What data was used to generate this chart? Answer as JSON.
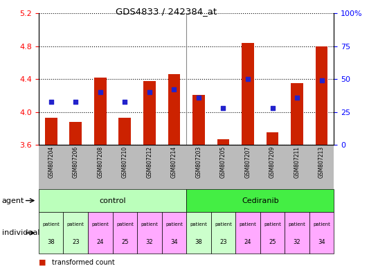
{
  "title": "GDS4833 / 242384_at",
  "samples": [
    "GSM807204",
    "GSM807206",
    "GSM807208",
    "GSM807210",
    "GSM807212",
    "GSM807214",
    "GSM807203",
    "GSM807205",
    "GSM807207",
    "GSM807209",
    "GSM807211",
    "GSM807213"
  ],
  "bar_values": [
    3.93,
    3.88,
    4.42,
    3.93,
    4.38,
    4.46,
    4.21,
    3.67,
    4.84,
    3.75,
    4.35,
    4.8
  ],
  "dot_percentile": [
    33,
    33,
    40,
    33,
    40,
    42,
    36,
    28,
    50,
    28,
    36,
    49
  ],
  "ylim_left": [
    3.6,
    5.2
  ],
  "ylim_right": [
    0,
    100
  ],
  "yticks_left": [
    3.6,
    4.0,
    4.4,
    4.8,
    5.2
  ],
  "yticks_right": [
    0,
    25,
    50,
    75,
    100
  ],
  "bar_color": "#cc2200",
  "dot_color": "#2222cc",
  "bar_bottom": 3.6,
  "individuals": [
    "38",
    "23",
    "24",
    "25",
    "32",
    "34",
    "38",
    "23",
    "24",
    "25",
    "32",
    "34"
  ],
  "individual_colors": [
    "#ccffcc",
    "#ccffcc",
    "#ffaaff",
    "#ffaaff",
    "#ffaaff",
    "#ffaaff",
    "#ccffcc",
    "#ccffcc",
    "#ffaaff",
    "#ffaaff",
    "#ffaaff",
    "#ffaaff"
  ],
  "agent_control_color": "#bbffbb",
  "agent_cediranib_color": "#44ee44",
  "xticklabel_bg": "#bbbbbb"
}
